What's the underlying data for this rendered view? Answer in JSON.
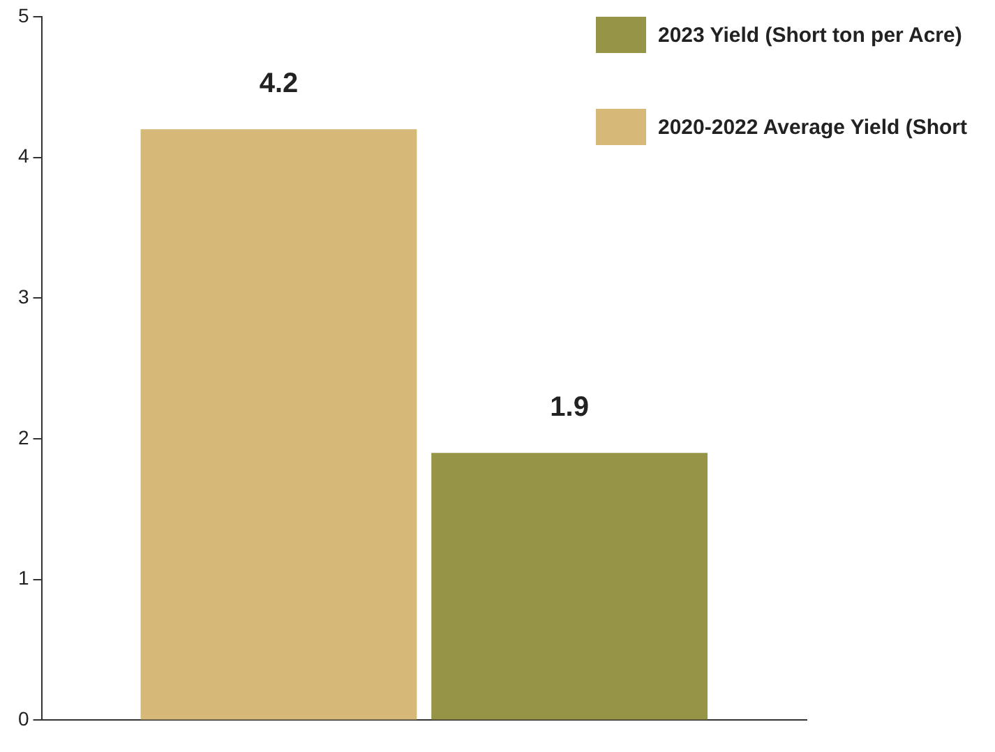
{
  "chart_data": {
    "type": "bar",
    "categories": [
      null
    ],
    "series": [
      {
        "name": "2020-2022 Average Yield (Short",
        "color": "#d6b878",
        "values": [
          4.2
        ]
      },
      {
        "name": "2023 Yield (Short ton per Acre)",
        "color": "#959447",
        "values": [
          1.9
        ]
      }
    ],
    "ylim": [
      0,
      5
    ],
    "yticks": [
      0,
      1,
      2,
      3,
      4,
      5
    ],
    "grid": false,
    "legend": "top right",
    "data_labels": true
  }
}
